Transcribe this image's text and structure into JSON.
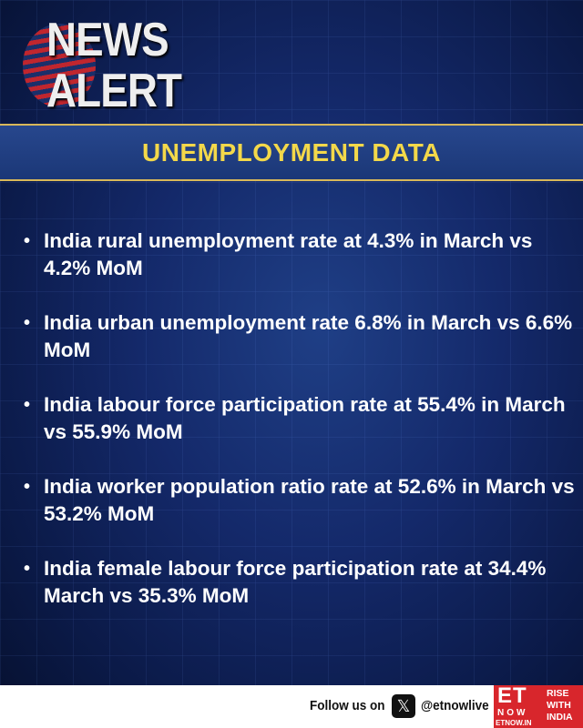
{
  "logo": {
    "line1": "NEWS",
    "line2": "ALERT"
  },
  "banner": {
    "title": "UNEMPLOYMENT DATA"
  },
  "bullets": [
    "India rural unemployment rate at 4.3% in March vs 4.2% MoM",
    "India urban unemployment rate 6.8% in March vs 6.6% MoM",
    "India labour force participation rate at 55.4% in March vs 55.9% MoM",
    "India worker population ratio rate at 52.6% in March vs 53.2% MoM",
    "India female labour force participation rate at 34.4% March vs 35.3% MoM"
  ],
  "footer": {
    "follow": "Follow us on",
    "icon": "x-logo-icon",
    "handle": "@etnowlive",
    "brand": {
      "et": "ET",
      "now": "NOW",
      "site": "ETNOW.IN",
      "tagline": [
        "RISE",
        "WITH",
        "INDIA"
      ]
    }
  },
  "colors": {
    "accent": "#f3d84a",
    "brand_red": "#d8262c",
    "background": "#14296a"
  }
}
